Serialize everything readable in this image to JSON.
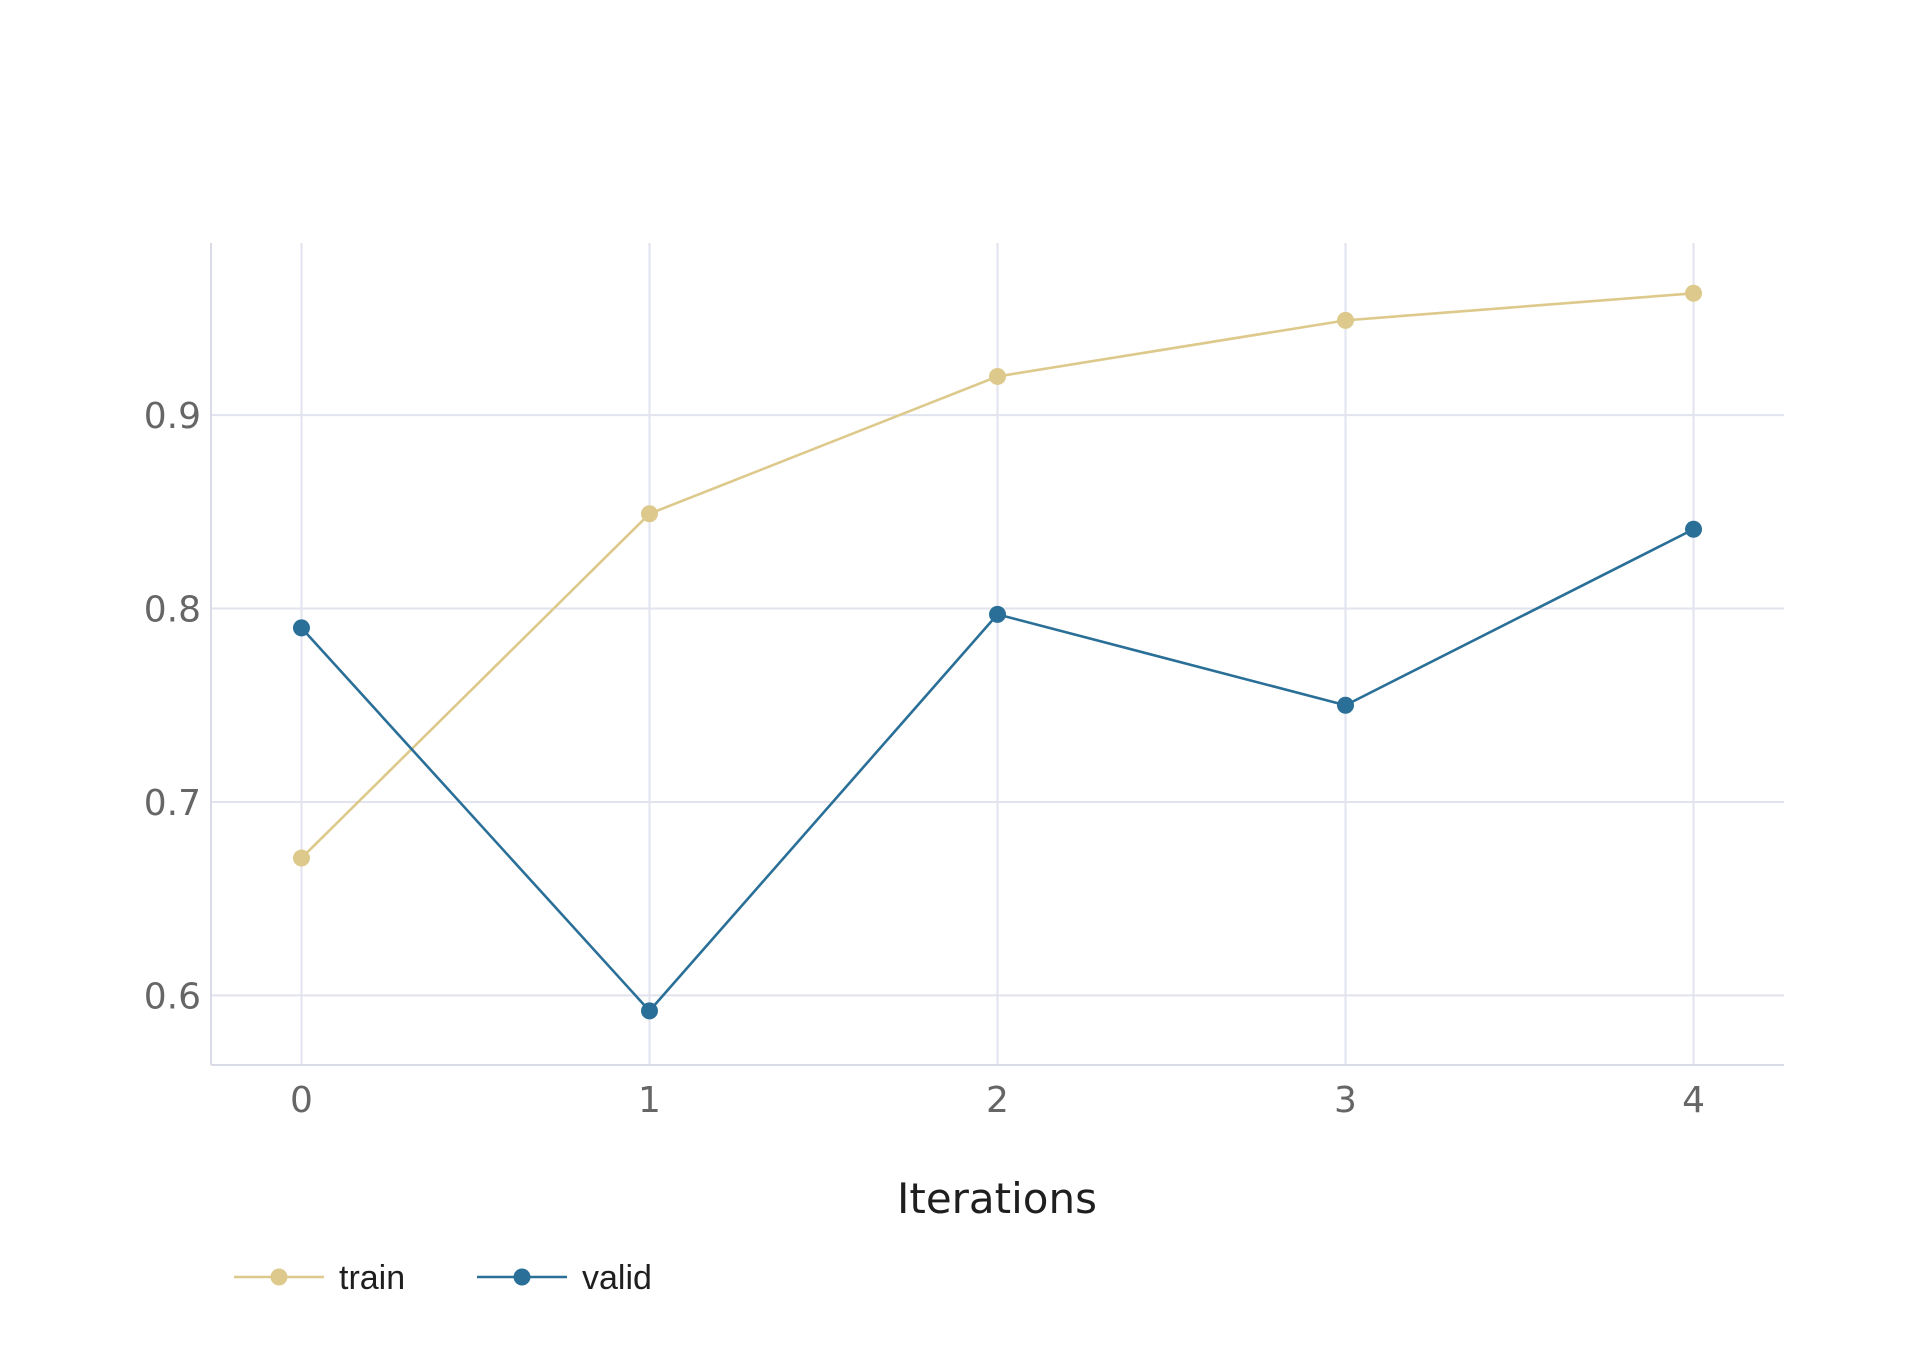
{
  "chart_data": {
    "type": "line",
    "title": "",
    "xlabel": "Iterations",
    "ylabel": "",
    "x": [
      0,
      1,
      2,
      3,
      4
    ],
    "xlim": [
      -0.26,
      4.26
    ],
    "ylim": [
      0.564,
      0.989
    ],
    "x_ticks": [
      0,
      1,
      2,
      3,
      4
    ],
    "y_ticks": [
      0.6,
      0.7,
      0.8,
      0.9
    ],
    "x_tick_labels": [
      "0",
      "1",
      "2",
      "3",
      "4"
    ],
    "y_tick_labels": [
      "0.6",
      "0.7",
      "0.8",
      "0.9"
    ],
    "grid": true,
    "legend_position": "bottom-left",
    "series": [
      {
        "name": "train",
        "color": "#ddc98b",
        "values": [
          0.671,
          0.849,
          0.92,
          0.949,
          0.963
        ]
      },
      {
        "name": "valid",
        "color": "#2a6f97",
        "values": [
          0.79,
          0.592,
          0.797,
          0.75,
          0.841
        ]
      }
    ],
    "grid_color": "#e1e3ee",
    "axis_line_color": "#d9dbe6"
  }
}
